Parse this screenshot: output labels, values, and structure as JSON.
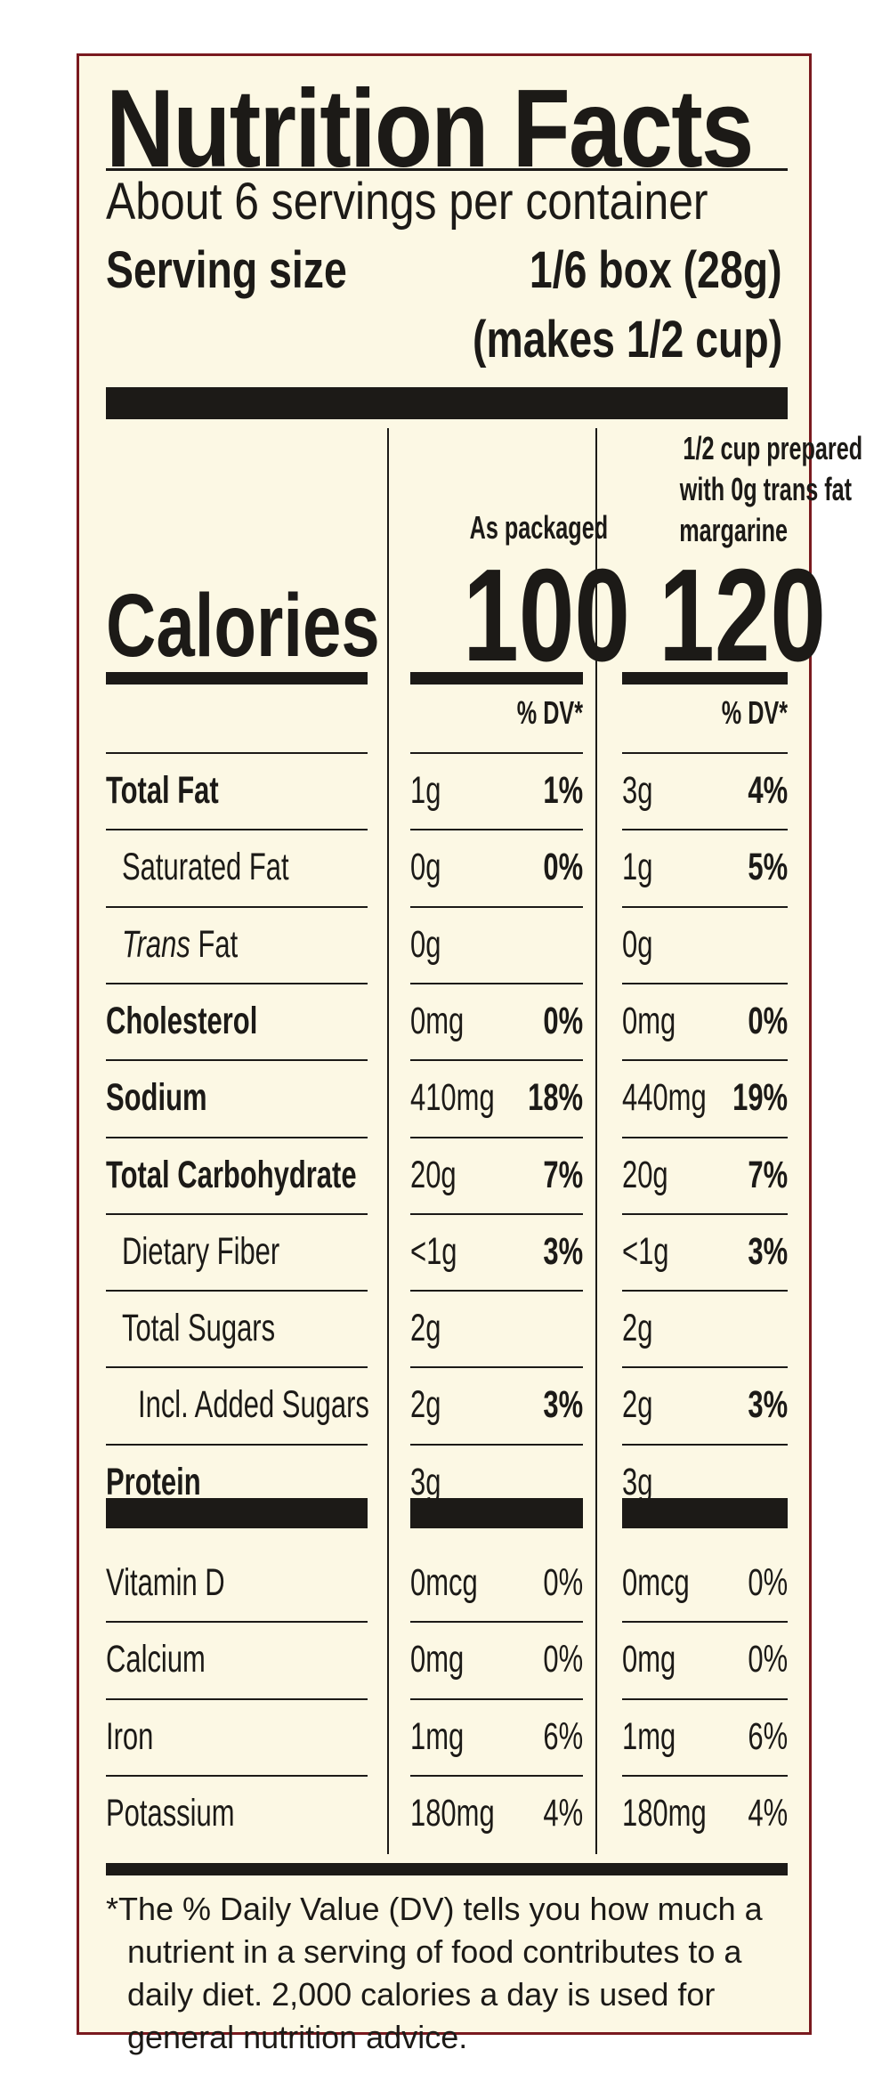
{
  "label": {
    "title": "Nutrition Facts",
    "servings": "About 6 servings per container",
    "serving_size_label": "Serving size",
    "serving_size_value": "1/6 box (28g)",
    "serving_size_note": "(makes 1/2 cup)",
    "calories_label": "Calories",
    "col1_header": "As packaged",
    "col2_header_line1": "1/2 cup prepared",
    "col2_header_line2": "with 0g trans fat",
    "col2_header_line3": "margarine",
    "col1_calories": "100",
    "col2_calories": "120",
    "dv_header": "% DV*",
    "rows": [
      {
        "name": "Total Fat",
        "c1": "1g",
        "d1": "1%",
        "c2": "3g",
        "d2": "4%"
      },
      {
        "name": "Saturated Fat",
        "c1": "0g",
        "d1": "0%",
        "c2": "1g",
        "d2": "5%"
      },
      {
        "name_prefix": "Trans",
        "name": " Fat",
        "c1": "0g",
        "d1": "",
        "c2": "0g",
        "d2": ""
      },
      {
        "name": "Cholesterol",
        "c1": "0mg",
        "d1": "0%",
        "c2": "0mg",
        "d2": "0%"
      },
      {
        "name": "Sodium",
        "c1": "410mg",
        "d1": "18%",
        "c2": "440mg",
        "d2": "19%"
      },
      {
        "name": "Total Carbohydrate",
        "c1": "20g",
        "d1": "7%",
        "c2": "20g",
        "d2": "7%"
      },
      {
        "name": "Dietary Fiber",
        "c1": "<1g",
        "d1": "3%",
        "c2": "<1g",
        "d2": "3%"
      },
      {
        "name": "Total Sugars",
        "c1": "2g",
        "d1": "",
        "c2": "2g",
        "d2": ""
      },
      {
        "name": "Incl. Added Sugars",
        "c1": "2g",
        "d1": "3%",
        "c2": "2g",
        "d2": "3%"
      },
      {
        "name": "Protein",
        "c1": "3g",
        "d1": "",
        "c2": "3g",
        "d2": ""
      }
    ],
    "vitamins": [
      {
        "name": "Vitamin D",
        "c1": "0mcg",
        "d1": "0%",
        "c2": "0mcg",
        "d2": "0%"
      },
      {
        "name": "Calcium",
        "c1": "0mg",
        "d1": "0%",
        "c2": "0mg",
        "d2": "0%"
      },
      {
        "name": "Iron",
        "c1": "1mg",
        "d1": "6%",
        "c2": "1mg",
        "d2": "6%"
      },
      {
        "name": "Potassium",
        "c1": "180mg",
        "d1": "4%",
        "c2": "180mg",
        "d2": "4%"
      }
    ],
    "footnote_line1": "*The % Daily Value (DV) tells you how much a",
    "footnote_line2": "nutrient in a serving of food contributes to a",
    "footnote_line3": "daily diet. 2,000 calories a day is used for",
    "footnote_line4": "general nutrition advice."
  },
  "colors": {
    "background": "#fcf8e4",
    "ink": "#1c1a17",
    "border": "#7a1a1f"
  }
}
